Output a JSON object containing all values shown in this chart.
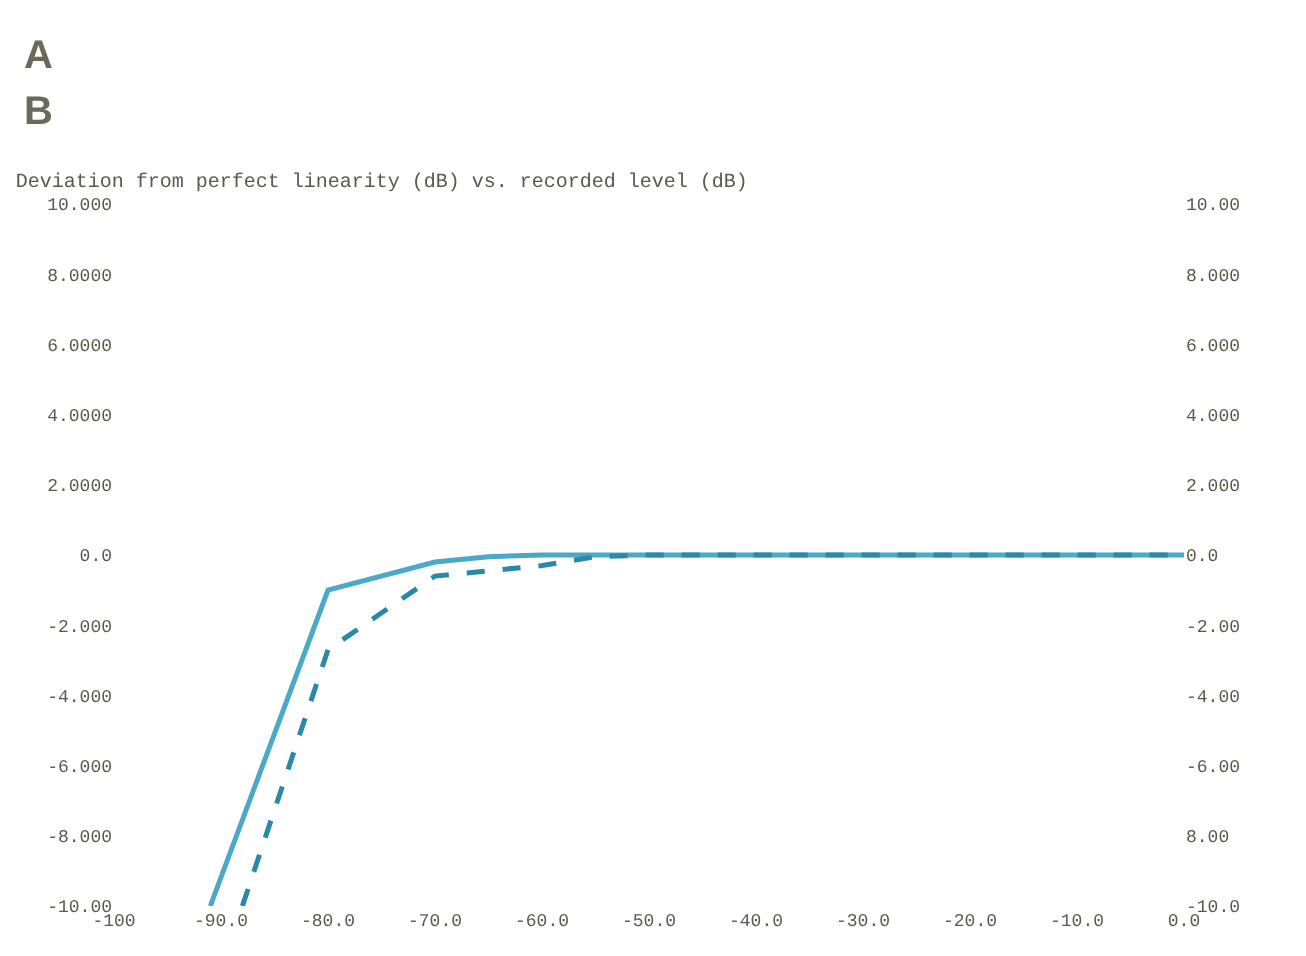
{
  "chart_data": {
    "type": "line",
    "title": "Deviation from perfect linearity (dB) vs. recorded level (dB)",
    "annotations": [
      "A",
      "B"
    ],
    "series": [
      {
        "color": "#4aa8c8",
        "line_style": "solid",
        "x": [
          -91,
          -80,
          -70,
          -65,
          -60,
          -50,
          -40,
          -30,
          -20,
          -10,
          0
        ],
        "values": [
          -10,
          -1.0,
          -0.2,
          -0.05,
          0,
          0,
          0,
          0,
          0,
          0,
          0
        ]
      },
      {
        "color": "#2a88a8",
        "line_style": "dashed",
        "x": [
          -88,
          -80,
          -70,
          -60,
          -55,
          -50,
          -40,
          -30,
          -20,
          -10,
          0
        ],
        "values": [
          -10,
          -2.7,
          -0.6,
          -0.3,
          -0.05,
          0,
          0,
          0,
          0,
          0,
          0
        ]
      }
    ],
    "xlim": [
      -100,
      0
    ],
    "xticks": [
      -100,
      {
        "value": -90,
        "label": "-90.0"
      },
      {
        "value": -80,
        "label": "-80.0"
      },
      {
        "value": -70,
        "label": "-70.0"
      },
      {
        "value": -60,
        "label": "-60.0"
      },
      {
        "value": -50,
        "label": "-50.0"
      },
      {
        "value": -40,
        "label": "-40.0"
      },
      {
        "value": -30,
        "label": "-30.0"
      },
      {
        "value": -20,
        "label": "-20.0"
      },
      {
        "value": -10,
        "label": "-10.0"
      },
      {
        "value": 0,
        "label": "0.0"
      }
    ],
    "ylim": [
      -10,
      10
    ],
    "yticks": [
      {
        "value": 10,
        "label": "10.000"
      },
      {
        "value": 8,
        "label": "8.0000"
      },
      {
        "value": 6,
        "label": "6.0000"
      },
      {
        "value": 4,
        "label": "4.0000"
      },
      {
        "value": 2,
        "label": "2.0000"
      },
      {
        "value": 0,
        "label": "0.0"
      },
      {
        "value": -2,
        "label": "-2.000"
      },
      {
        "value": -4,
        "label": "-4.000"
      },
      {
        "value": -6,
        "label": "-6.000"
      },
      {
        "value": -8,
        "label": "-8.000"
      },
      {
        "value": -10,
        "label": "-10.00"
      }
    ],
    "y2lim": [
      -10,
      10
    ],
    "y2ticks": [
      {
        "value": 10,
        "label": "10.00"
      },
      {
        "value": 8,
        "label": "8.000"
      },
      {
        "value": 6,
        "label": "6.000"
      },
      {
        "value": 4,
        "label": "4.000"
      },
      {
        "value": 2,
        "label": "2.000"
      },
      {
        "value": 0,
        "label": "0.0"
      },
      {
        "value": -2,
        "label": "-2.00"
      },
      {
        "value": -4,
        "label": "-4.00"
      },
      {
        "value": -6,
        "label": "-6.00"
      },
      {
        "value": -8,
        "label": "8.00"
      },
      {
        "value": -10,
        "label": "-10.0"
      }
    ],
    "marker": "none"
  }
}
